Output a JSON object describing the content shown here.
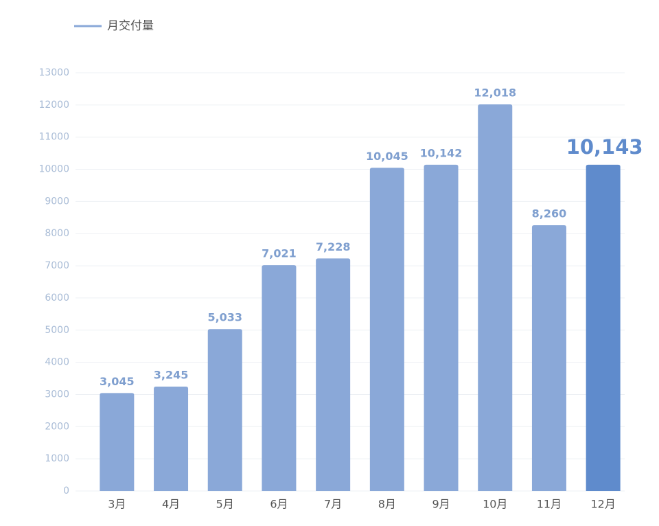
{
  "chart_data": {
    "type": "bar",
    "categories": [
      "3月",
      "4月",
      "5月",
      "6月",
      "7月",
      "8月",
      "9月",
      "10月",
      "11月",
      "12月"
    ],
    "series": [
      {
        "name": "月交付量",
        "color": "#8aa8d8",
        "values": [
          3045,
          3245,
          5033,
          7021,
          7228,
          10045,
          10142,
          12018,
          8260,
          10143
        ],
        "value_labels": [
          "3,045",
          "3,245",
          "5,033",
          "7,021",
          "7,228",
          "10,045",
          "10,142",
          "12,018",
          "8,260",
          "10,143"
        ],
        "colors": [
          "#8aa8d8",
          "#8aa8d8",
          "#8aa8d8",
          "#8aa8d8",
          "#8aa8d8",
          "#8aa8d8",
          "#8aa8d8",
          "#8aa8d8",
          "#8aa8d8",
          "#5f8bcc"
        ]
      }
    ],
    "ylim": [
      0,
      13000
    ],
    "yticks": [
      0,
      1000,
      2000,
      3000,
      4000,
      5000,
      6000,
      7000,
      8000,
      9000,
      10000,
      11000,
      12000,
      13000
    ],
    "grid": true,
    "legend": "top-left"
  }
}
